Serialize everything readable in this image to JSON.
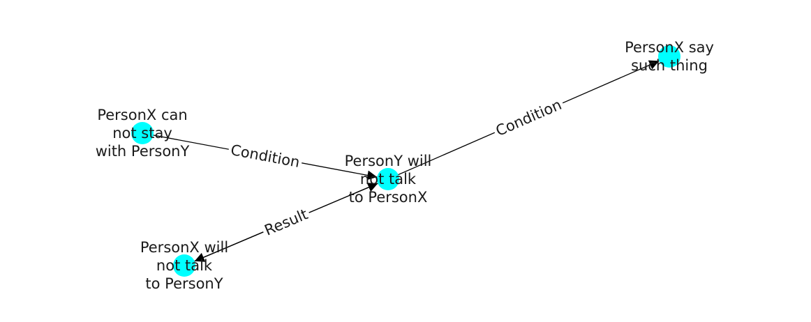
{
  "graph": {
    "node_color": "#00ffff",
    "edge_color": "#000000",
    "text_color": "#1a1a1a",
    "nodes": [
      {
        "id": "n1",
        "lines": [
          "PersonX can",
          "not stay",
          "with PersonY"
        ]
      },
      {
        "id": "n2",
        "lines": [
          "PersonY will",
          "not talk",
          "to PersonX"
        ]
      },
      {
        "id": "n3",
        "lines": [
          "PersonX say",
          "such thing"
        ]
      },
      {
        "id": "n4",
        "lines": [
          "PersonX will",
          "not talk",
          "to PersonY"
        ]
      }
    ],
    "edges": [
      {
        "source": "n1",
        "target": "n2",
        "label": "Condition"
      },
      {
        "source": "n2",
        "target": "n3",
        "label": "Condition"
      },
      {
        "source": "n2",
        "target": "n4",
        "label": "Result"
      },
      {
        "source": "n4",
        "target": "n2",
        "label": ""
      }
    ]
  }
}
